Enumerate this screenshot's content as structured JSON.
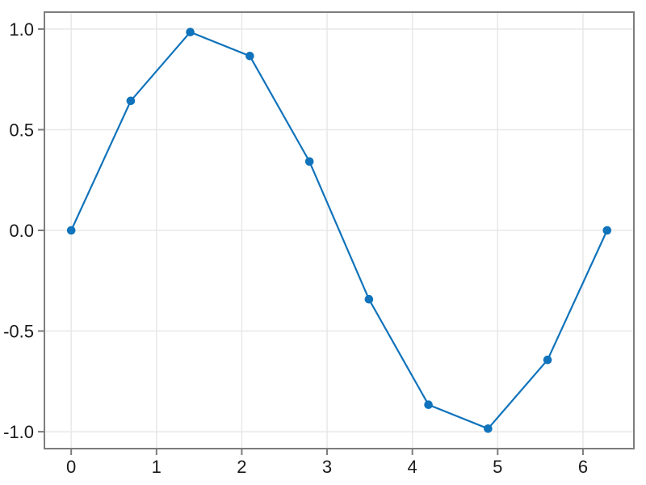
{
  "figure": {
    "background_color": "#ffffff"
  },
  "chart_data": {
    "type": "line",
    "title": "",
    "xlabel": "",
    "ylabel": "",
    "legend": null,
    "grid": true,
    "marker": "circle",
    "x": [
      0.0,
      0.698,
      1.396,
      2.094,
      2.793,
      3.491,
      4.189,
      4.887,
      5.585,
      6.283
    ],
    "y": [
      0.0,
      0.643,
      0.985,
      0.866,
      0.342,
      -0.342,
      -0.866,
      -0.985,
      -0.643,
      0.0
    ],
    "series_name": "",
    "xticks": [
      0,
      1,
      2,
      3,
      4,
      5,
      6
    ],
    "xtick_labels": [
      "0",
      "1",
      "2",
      "3",
      "4",
      "5",
      "6"
    ],
    "yticks": [
      -1.0,
      -0.5,
      0.0,
      0.5,
      1.0
    ],
    "ytick_labels": [
      "-1.0",
      "-0.5",
      "0.0",
      "0.5",
      "1.0"
    ],
    "xlim": [
      -0.314,
      6.597
    ],
    "ylim": [
      -1.084,
      1.084
    ],
    "colors": {
      "line": "#1073bb",
      "marker": "#1073bb",
      "grid": "#e8e8e8",
      "frame": "#7d7d7d",
      "tick": "#7d7d7d",
      "tick_label": "#1a1a1a",
      "background": "#ffffff"
    }
  }
}
